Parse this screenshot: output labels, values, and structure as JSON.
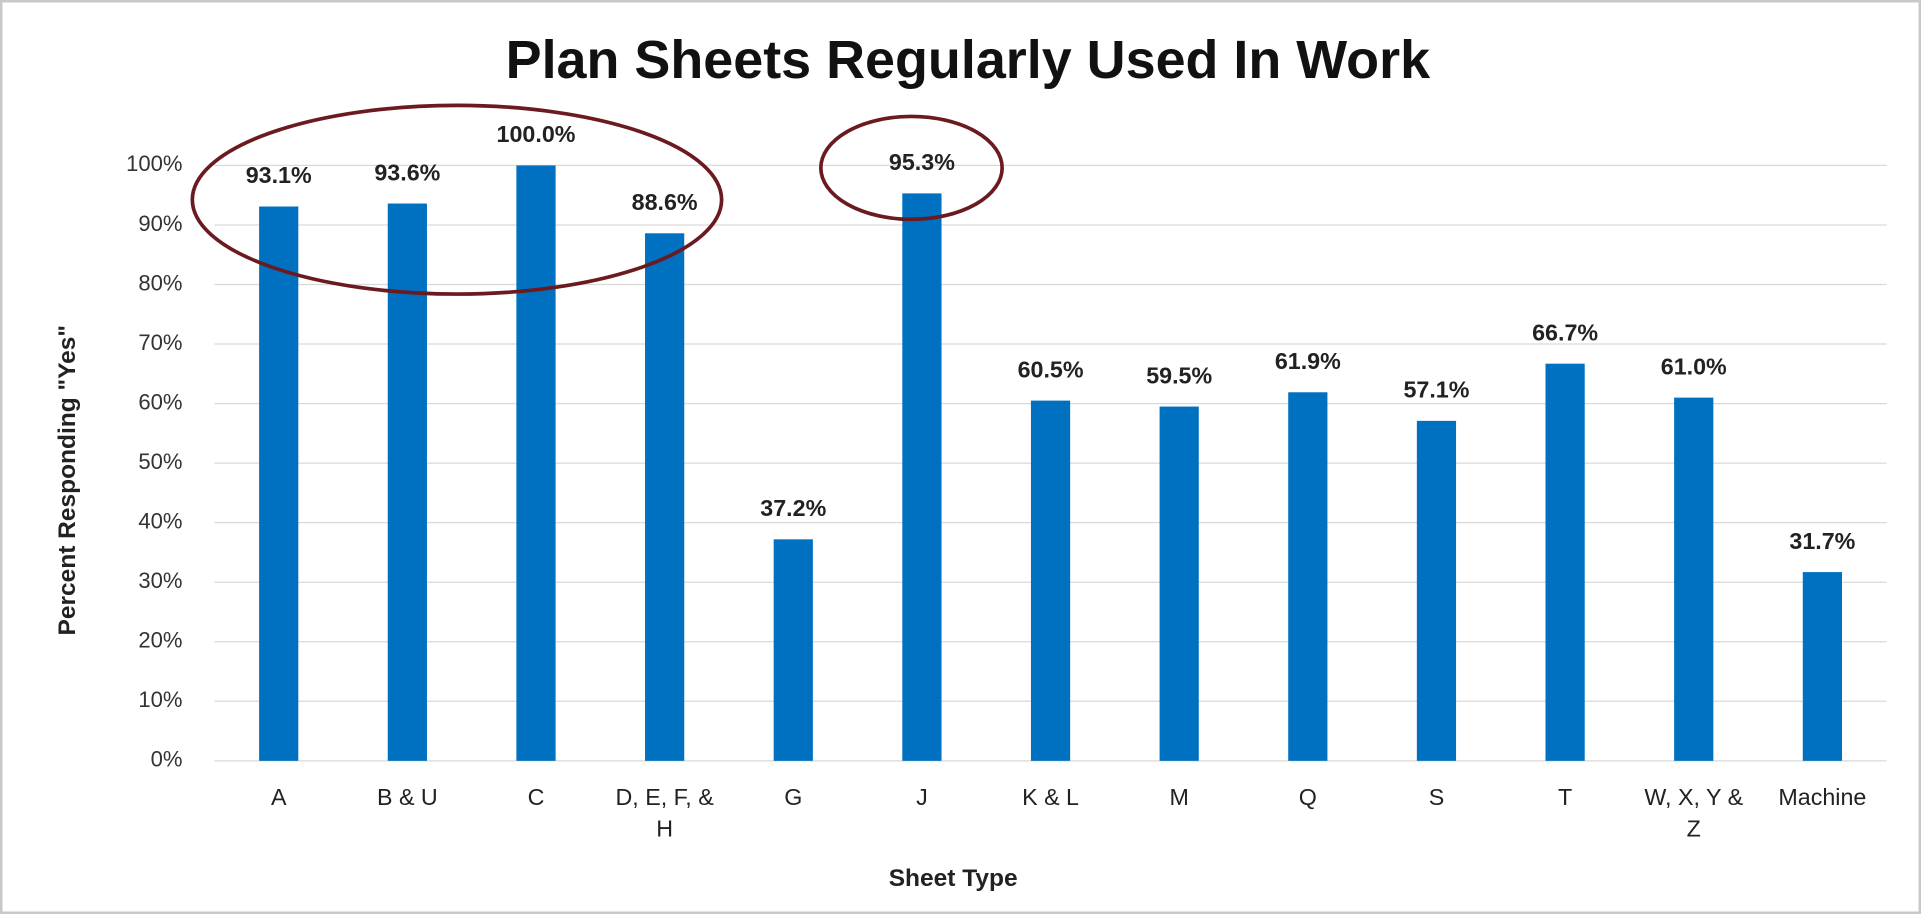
{
  "chart_data": {
    "type": "bar",
    "title": "Plan Sheets Regularly Used In Work",
    "x_label": "Sheet Type",
    "y_label": "Percent Responding \"Yes\"",
    "categories": [
      "A",
      "B & U",
      "C",
      "D, E, F, & H",
      "G",
      "J",
      "K & L",
      "M",
      "Q",
      "S",
      "T",
      "W, X, Y & Z",
      "Machine"
    ],
    "values": [
      93.1,
      93.6,
      100.0,
      88.6,
      37.2,
      95.3,
      60.5,
      59.5,
      61.9,
      57.1,
      66.7,
      61.0,
      31.7
    ],
    "value_labels": [
      "93.1%",
      "93.6%",
      "100.0%",
      "88.6%",
      "37.2%",
      "95.3%",
      "60.5%",
      "59.5%",
      "61.9%",
      "57.1%",
      "66.7%",
      "61.0%",
      "31.7%"
    ],
    "color": "#0070c0",
    "ylim": [
      0,
      100
    ],
    "yticks": [
      {
        "value": 0,
        "label": "0%"
      },
      {
        "value": 10,
        "label": "10%"
      },
      {
        "value": 20,
        "label": "20%"
      },
      {
        "value": 30,
        "label": "30%"
      },
      {
        "value": 40,
        "label": "40%"
      },
      {
        "value": 50,
        "label": "50%"
      },
      {
        "value": 60,
        "label": "60%"
      },
      {
        "value": 70,
        "label": "70%"
      },
      {
        "value": 80,
        "label": "80%"
      },
      {
        "value": 90,
        "label": "90%"
      },
      {
        "value": 100,
        "label": "100%"
      }
    ],
    "grid": true
  }
}
